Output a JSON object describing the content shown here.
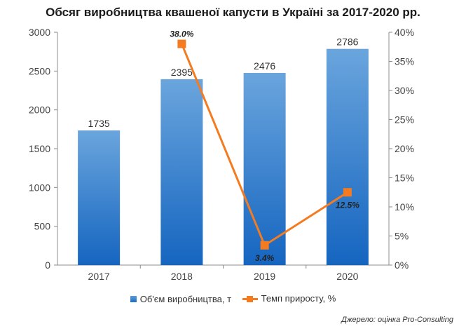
{
  "chart_data": {
    "type": "bar",
    "title": "Обсяг виробництва квашеної капусти в Україні за 2017-2020 рр.",
    "categories": [
      "2017",
      "2018",
      "2019",
      "2020"
    ],
    "series": [
      {
        "name": "Об'єм виробництва, т",
        "type": "bar",
        "axis": "left",
        "values": [
          1735,
          2395,
          2476,
          2786
        ],
        "labels": [
          "1735",
          "2395",
          "2476",
          "2786"
        ],
        "color": "#2a7bd0"
      },
      {
        "name": "Темп приросту, %",
        "type": "line",
        "axis": "right",
        "x": [
          "2018",
          "2019",
          "2020"
        ],
        "values": [
          38.0,
          3.4,
          12.5
        ],
        "labels": [
          "38.0%",
          "3.4%",
          "12.5%"
        ],
        "color": "#f47b20"
      }
    ],
    "y_left": {
      "min": 0,
      "max": 3000,
      "ticks": [
        "0",
        "500",
        "1000",
        "1500",
        "2000",
        "2500",
        "3000"
      ]
    },
    "y_right": {
      "min": 0,
      "max": 40,
      "ticks": [
        "0%",
        "5%",
        "10%",
        "15%",
        "20%",
        "25%",
        "30%",
        "35%",
        "40%"
      ]
    },
    "grid": false,
    "legend_position": "bottom"
  },
  "source": "Джерело: оцінка Pro-Consulting"
}
